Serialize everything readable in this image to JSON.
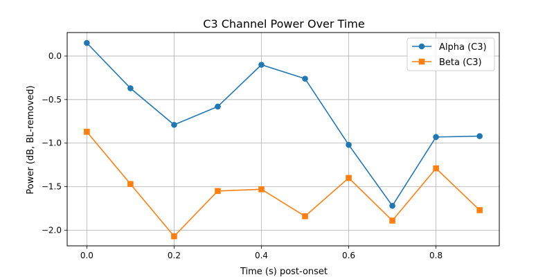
{
  "chart_data": {
    "type": "line",
    "title": "C3 Channel Power Over Time",
    "xlabel": "Time (s) post-onset",
    "ylabel": "Power (dB, BL-removed)",
    "x": [
      0.0,
      0.1,
      0.2,
      0.3,
      0.4,
      0.5,
      0.6,
      0.7,
      0.8,
      0.9
    ],
    "xlim": [
      -0.045,
      0.945
    ],
    "ylim": [
      -2.18,
      0.27
    ],
    "xticks": [
      0.0,
      0.2,
      0.4,
      0.6,
      0.8
    ],
    "xtick_labels": [
      "0.0",
      "0.2",
      "0.4",
      "0.6",
      "0.8"
    ],
    "yticks": [
      0.0,
      -0.5,
      -1.0,
      -1.5,
      -2.0
    ],
    "ytick_labels": [
      "0.0",
      "−0.5",
      "−1.0",
      "−1.5",
      "−2.0"
    ],
    "grid": true,
    "legend_position": "top-right",
    "series": [
      {
        "name": "Alpha (C3)",
        "color": "#1f77b4",
        "marker": "circle",
        "values": [
          0.15,
          -0.37,
          -0.79,
          -0.58,
          -0.1,
          -0.26,
          -1.02,
          -1.72,
          -0.93,
          -0.92
        ]
      },
      {
        "name": "Beta (C3)",
        "color": "#ff7f0e",
        "marker": "square",
        "values": [
          -0.87,
          -1.47,
          -2.07,
          -1.55,
          -1.53,
          -1.84,
          -1.4,
          -1.89,
          -1.29,
          -1.77
        ]
      }
    ]
  }
}
